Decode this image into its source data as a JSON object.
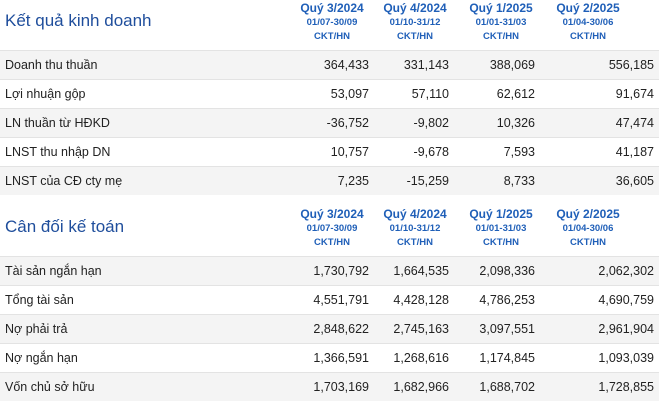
{
  "income": {
    "title": "Kết quả kinh doanh",
    "columns": [
      {
        "quarter": "Quý 3/2024",
        "dates": "01/07-30/09",
        "unit": "CKT/HN"
      },
      {
        "quarter": "Quý 4/2024",
        "dates": "01/10-31/12",
        "unit": "CKT/HN"
      },
      {
        "quarter": "Quý 1/2025",
        "dates": "01/01-31/03",
        "unit": "CKT/HN"
      },
      {
        "quarter": "Quý 2/2025",
        "dates": "01/04-30/06",
        "unit": "CKT/HN"
      }
    ],
    "rows": [
      {
        "label": "Doanh thu thuần",
        "values": [
          "364,433",
          "331,143",
          "388,069",
          "556,185"
        ]
      },
      {
        "label": "Lợi nhuận gộp",
        "values": [
          "53,097",
          "57,110",
          "62,612",
          "91,674"
        ]
      },
      {
        "label": "LN thuần từ HĐKD",
        "values": [
          "-36,752",
          "-9,802",
          "10,326",
          "47,474"
        ]
      },
      {
        "label": "LNST thu nhập DN",
        "values": [
          "10,757",
          "-9,678",
          "7,593",
          "41,187"
        ]
      },
      {
        "label": "LNST của CĐ cty mẹ",
        "values": [
          "7,235",
          "-15,259",
          "8,733",
          "36,605"
        ]
      }
    ]
  },
  "balance": {
    "title": "Cân đối kế toán",
    "columns": [
      {
        "quarter": "Quý 3/2024",
        "dates": "01/07-30/09",
        "unit": "CKT/HN"
      },
      {
        "quarter": "Quý 4/2024",
        "dates": "01/10-31/12",
        "unit": "CKT/HN"
      },
      {
        "quarter": "Quý 1/2025",
        "dates": "01/01-31/03",
        "unit": "CKT/HN"
      },
      {
        "quarter": "Quý 2/2025",
        "dates": "01/04-30/06",
        "unit": "CKT/HN"
      }
    ],
    "rows": [
      {
        "label": "Tài sản ngắn hạn",
        "values": [
          "1,730,792",
          "1,664,535",
          "2,098,336",
          "2,062,302"
        ]
      },
      {
        "label": "Tổng tài sản",
        "values": [
          "4,551,791",
          "4,428,128",
          "4,786,253",
          "4,690,759"
        ]
      },
      {
        "label": "Nợ phải trả",
        "values": [
          "2,848,622",
          "2,745,163",
          "3,097,551",
          "2,961,904"
        ]
      },
      {
        "label": "Nợ ngắn hạn",
        "values": [
          "1,366,591",
          "1,268,616",
          "1,174,845",
          "1,093,039"
        ]
      },
      {
        "label": "Vốn chủ sở hữu",
        "values": [
          "1,703,169",
          "1,682,966",
          "1,688,702",
          "1,728,855"
        ]
      }
    ]
  }
}
